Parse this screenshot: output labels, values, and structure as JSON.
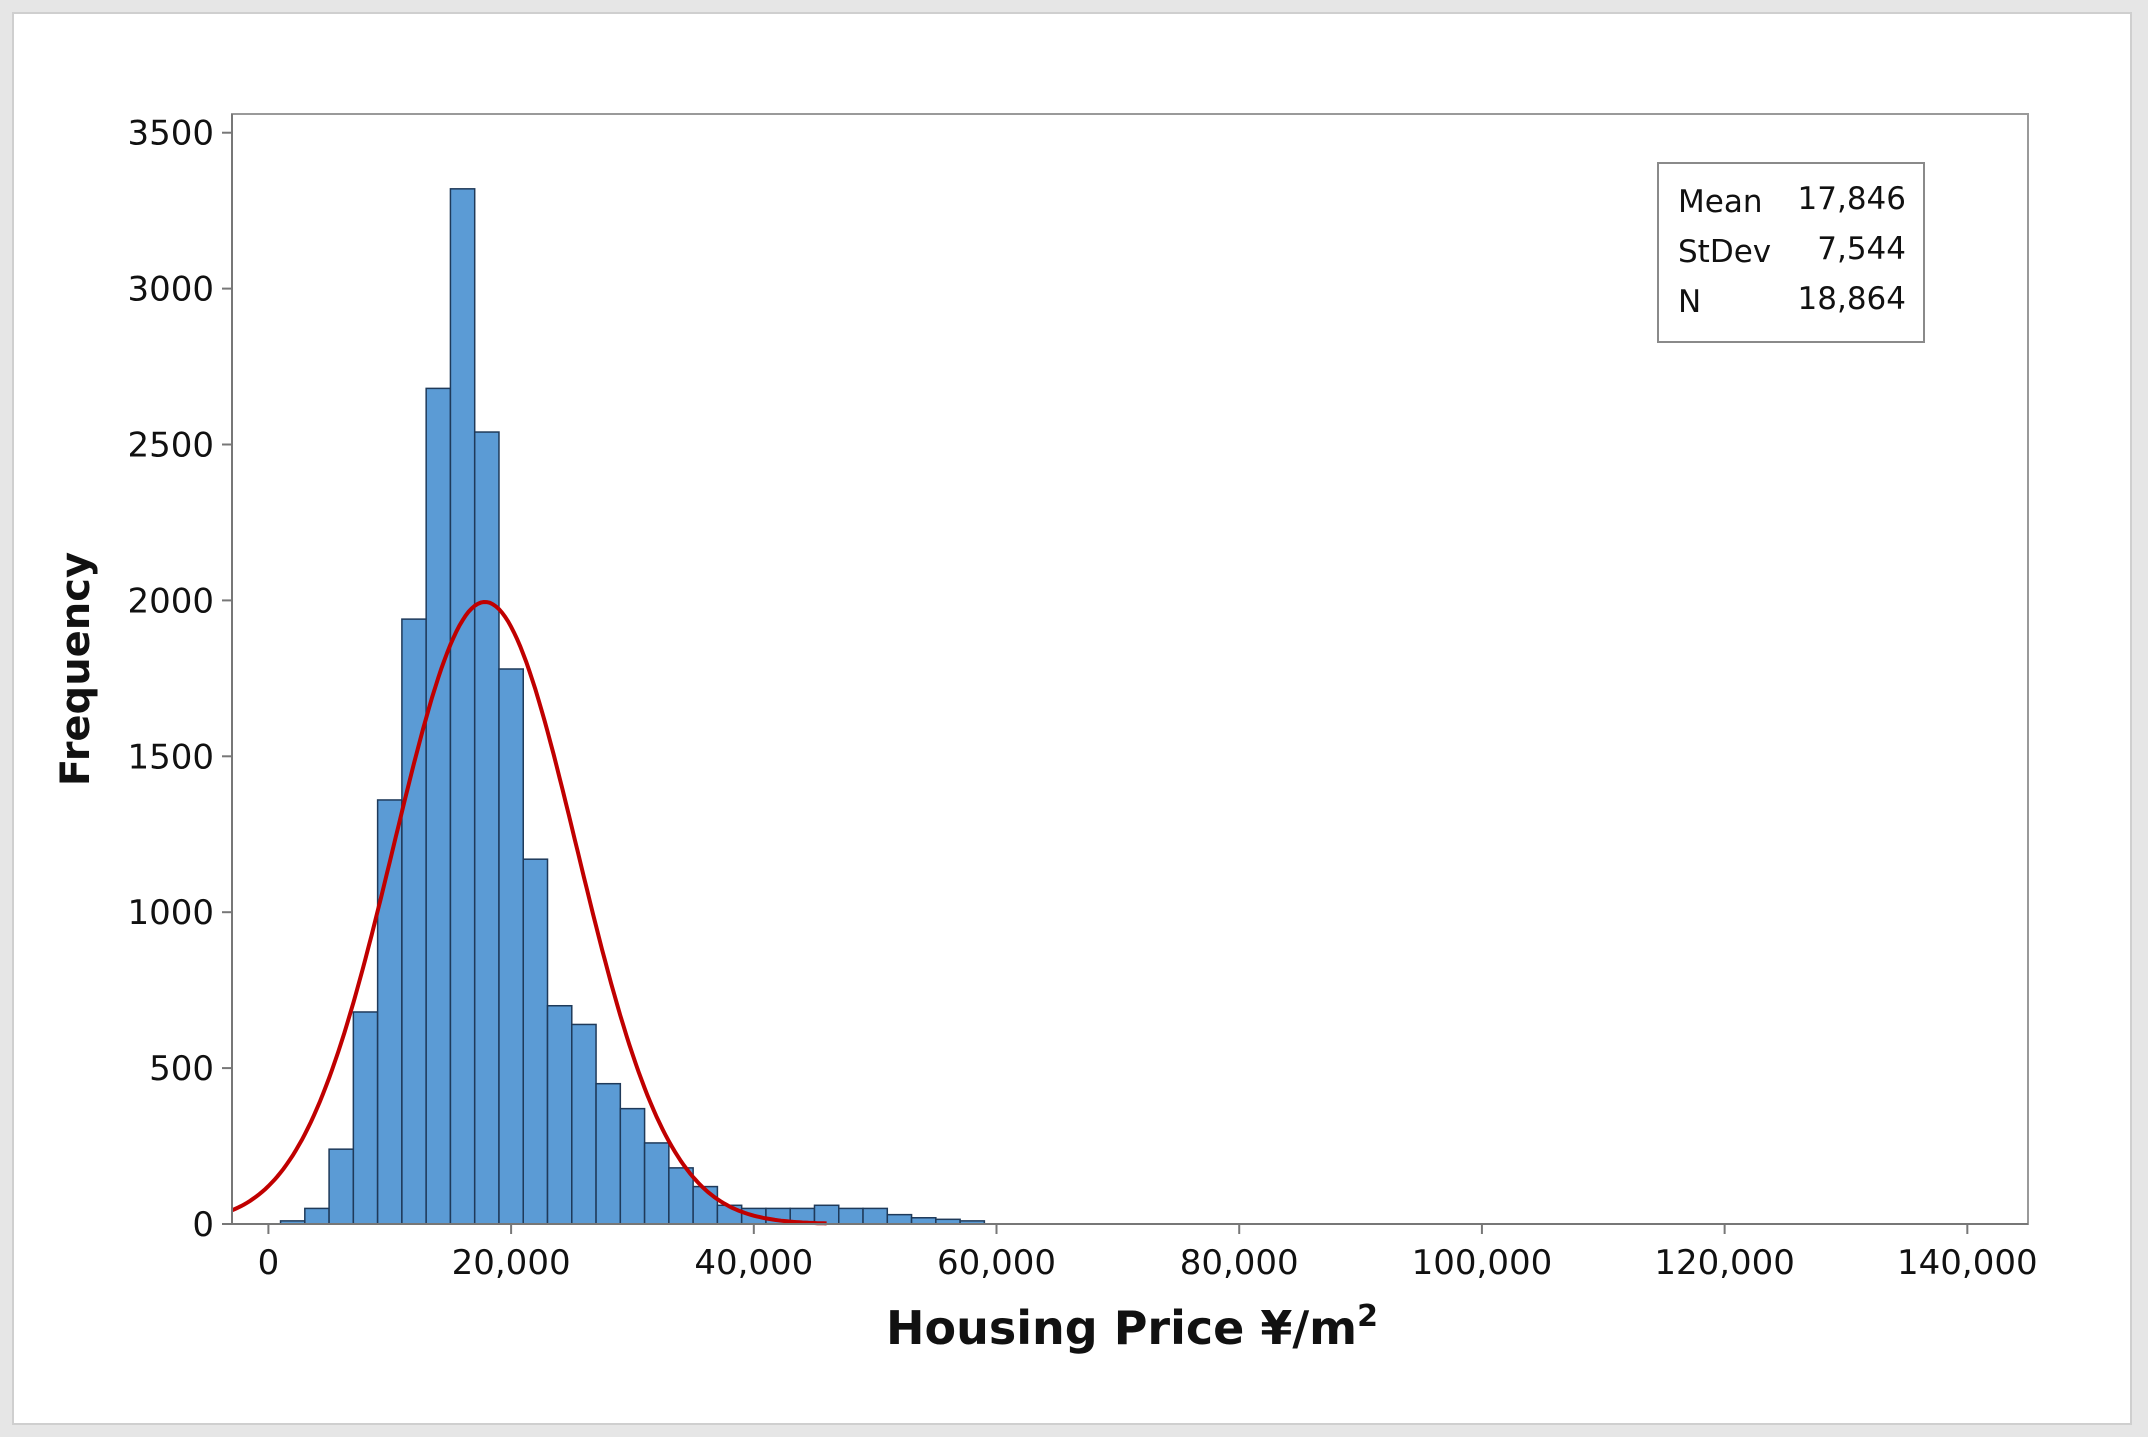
{
  "chart_data": {
    "type": "bar",
    "subtype": "histogram-with-normal-fit",
    "xlabel": "Housing Price ¥/m",
    "xlabel_superscript": "2",
    "ylabel": "Frequency",
    "xlim": [
      -3000,
      145000
    ],
    "ylim": [
      0,
      3560
    ],
    "x_ticks": [
      0,
      20000,
      40000,
      60000,
      80000,
      100000,
      120000,
      140000
    ],
    "x_tick_labels": [
      "0",
      "20,000",
      "40,000",
      "60,000",
      "80,000",
      "100,000",
      "120,000",
      "140,000"
    ],
    "y_ticks": [
      0,
      500,
      1000,
      1500,
      2000,
      2500,
      3000,
      3500
    ],
    "y_tick_labels": [
      "0",
      "500",
      "1000",
      "1500",
      "2000",
      "2500",
      "3000",
      "3500"
    ],
    "bin_width": 2000,
    "bins_start": [
      1000,
      3000,
      5000,
      7000,
      9000,
      11000,
      13000,
      15000,
      17000,
      19000,
      21000,
      23000,
      25000,
      27000,
      29000,
      31000,
      33000,
      35000,
      37000,
      39000,
      41000,
      43000,
      45000,
      47000,
      49000,
      51000,
      53000,
      55000,
      57000
    ],
    "values": [
      10,
      50,
      240,
      680,
      1360,
      1940,
      2680,
      3320,
      2540,
      1780,
      1170,
      700,
      640,
      450,
      370,
      260,
      180,
      120,
      60,
      50,
      50,
      50,
      60,
      50,
      50,
      30,
      20,
      15,
      10
    ],
    "fit": {
      "type": "normal",
      "mean": 17846,
      "stdev": 7544,
      "n": 18864
    },
    "grid": false,
    "legend": {
      "position": "top-right",
      "rows": [
        {
          "label": "Mean",
          "value": "17,846"
        },
        {
          "label": "StDev",
          "value": "7,544"
        },
        {
          "label": "N",
          "value": "18,864"
        }
      ]
    },
    "colors": {
      "bar_fill": "#5b9bd5",
      "bar_stroke": "#1f3a5a",
      "curve": "#c00000"
    }
  }
}
